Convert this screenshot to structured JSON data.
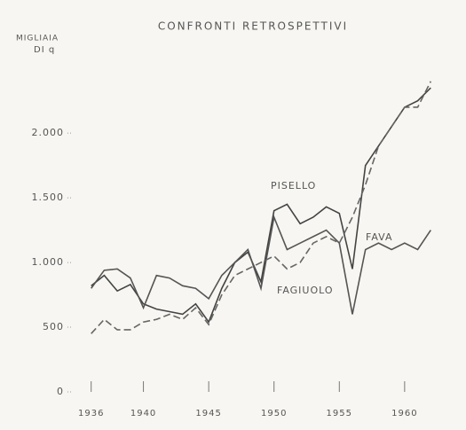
{
  "chart_data": {
    "type": "line",
    "title": "CONFRONTI RETROSPETTIVI",
    "y_label": [
      "MIGLIAIA",
      "DI q"
    ],
    "x": [
      1936,
      1937,
      1938,
      1939,
      1940,
      1941,
      1942,
      1943,
      1944,
      1945,
      1946,
      1947,
      1948,
      1949,
      1950,
      1951,
      1952,
      1953,
      1954,
      1955,
      1956,
      1957,
      1958,
      1959,
      1960,
      1961,
      1962
    ],
    "series": [
      {
        "name": "PISELLO",
        "color": "#444444",
        "line_style": "solid",
        "values": [
          820,
          900,
          780,
          830,
          680,
          640,
          620,
          600,
          680,
          540,
          800,
          1000,
          1080,
          850,
          1400,
          1450,
          1300,
          1350,
          1430,
          1380,
          950,
          1750,
          1900,
          2050,
          2200,
          2250,
          2350
        ]
      },
      {
        "name": "FAVA",
        "color": "#555555",
        "line_style": "solid",
        "values": [
          800,
          940,
          950,
          880,
          650,
          900,
          880,
          820,
          800,
          720,
          900,
          1000,
          1100,
          800,
          1350,
          1100,
          1150,
          1200,
          1250,
          1150,
          600,
          1100,
          1150,
          1100,
          1150,
          1100,
          1250
        ]
      },
      {
        "name": "FAGIUOLO",
        "color": "#666666",
        "line_style": "dashed",
        "values": [
          450,
          560,
          480,
          480,
          540,
          560,
          600,
          560,
          650,
          520,
          750,
          900,
          950,
          1000,
          1050,
          950,
          1000,
          1150,
          1200,
          1150,
          1350,
          1600,
          1900,
          2050,
          2200,
          2200,
          2400
        ]
      }
    ],
    "xlim": [
      1935,
      1963
    ],
    "xticks": [
      1936,
      1940,
      1945,
      1950,
      1955,
      1960
    ],
    "ylim": [
      0,
      2700
    ],
    "yticks": [
      0,
      500,
      {
        "value": 1000,
        "label": "1.000"
      },
      {
        "value": 1500,
        "label": "1.500"
      },
      {
        "value": 2000,
        "label": "2.000"
      }
    ]
  }
}
